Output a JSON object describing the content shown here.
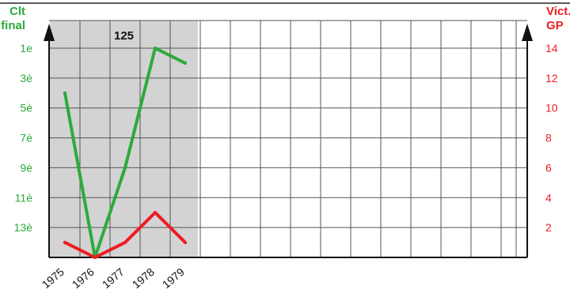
{
  "chart_data": {
    "type": "line",
    "categories": [
      "1975",
      "1976",
      "1977",
      "1978",
      "1979"
    ],
    "left_axis": {
      "title_lines": [
        "Clt",
        "final"
      ],
      "ticks": [
        "1e",
        "3è",
        "5è",
        "7è",
        "9è",
        "11è",
        "13è"
      ],
      "tick_values": [
        1,
        3,
        5,
        7,
        9,
        11,
        13
      ],
      "range": [
        1,
        15
      ],
      "inverted": true,
      "color": "#2eaa3c"
    },
    "right_axis": {
      "title_lines": [
        "Vict.",
        "GP"
      ],
      "ticks": [
        "14",
        "12",
        "10",
        "8",
        "6",
        "4",
        "2"
      ],
      "tick_values": [
        14,
        12,
        10,
        8,
        6,
        4,
        2
      ],
      "range": [
        0,
        14
      ],
      "color": "#ee1c24"
    },
    "series": [
      {
        "axis": "left",
        "color": "#2eaa3c",
        "values": [
          4,
          15,
          9,
          1,
          2
        ]
      },
      {
        "axis": "right",
        "color": "#ee1c24",
        "values": [
          1,
          0,
          1,
          3,
          1
        ]
      }
    ],
    "highlight_band": {
      "label": "125",
      "from_index": 0,
      "to_index": 4,
      "color": "#d3d3d3"
    },
    "grid": true
  }
}
